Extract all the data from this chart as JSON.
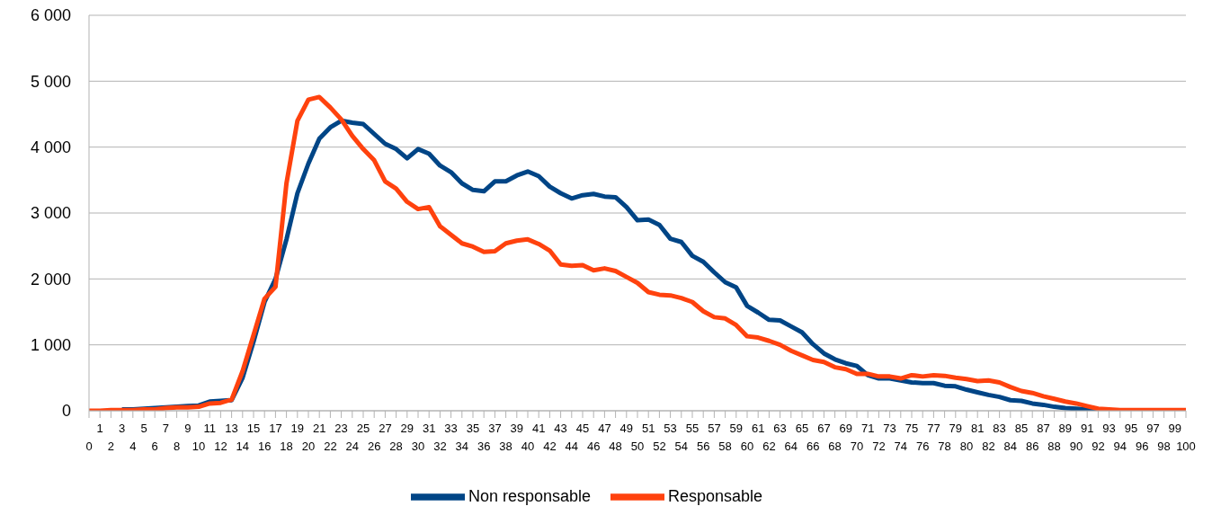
{
  "chart_data": {
    "type": "line",
    "categories": [
      "0",
      "1",
      "2",
      "3",
      "4",
      "5",
      "6",
      "7",
      "8",
      "9",
      "10",
      "11",
      "12",
      "13",
      "14",
      "15",
      "16",
      "17",
      "18",
      "19",
      "20",
      "21",
      "22",
      "23",
      "24",
      "25",
      "26",
      "27",
      "28",
      "29",
      "30",
      "31",
      "32",
      "33",
      "34",
      "35",
      "36",
      "37",
      "38",
      "39",
      "40",
      "41",
      "42",
      "43",
      "44",
      "45",
      "46",
      "47",
      "48",
      "49",
      "50",
      "51",
      "52",
      "53",
      "54",
      "55",
      "56",
      "57",
      "58",
      "59",
      "60",
      "61",
      "62",
      "63",
      "64",
      "65",
      "66",
      "67",
      "68",
      "69",
      "70",
      "71",
      "72",
      "73",
      "74",
      "75",
      "76",
      "77",
      "78",
      "79",
      "80",
      "81",
      "82",
      "83",
      "84",
      "85",
      "86",
      "87",
      "88",
      "89",
      "90",
      "91",
      "92",
      "93",
      "94",
      "95",
      "96",
      "97",
      "98",
      "99",
      "100"
    ],
    "series": [
      {
        "name": "Non responsable",
        "color": "#004586",
        "values": [
          null,
          null,
          null,
          20,
          20,
          30,
          40,
          50,
          60,
          70,
          80,
          140,
          150,
          160,
          500,
          1050,
          1650,
          2000,
          2600,
          3300,
          3750,
          4130,
          4300,
          4400,
          4370,
          4350,
          4200,
          4050,
          3970,
          3830,
          3970,
          3900,
          3720,
          3620,
          3450,
          3350,
          3330,
          3480,
          3480,
          3570,
          3630,
          3560,
          3400,
          3300,
          3220,
          3270,
          3290,
          3250,
          3240,
          3090,
          2890,
          2900,
          2820,
          2610,
          2560,
          2350,
          2260,
          2100,
          1950,
          1870,
          1590,
          1490,
          1380,
          1370,
          1280,
          1190,
          1010,
          870,
          780,
          720,
          680,
          540,
          490,
          490,
          460,
          430,
          420,
          420,
          380,
          370,
          320,
          280,
          240,
          210,
          160,
          150,
          110,
          90,
          60,
          40,
          30,
          20,
          10,
          0,
          null,
          null,
          null,
          null,
          null,
          null,
          null
        ]
      },
      {
        "name": "Responsable",
        "color": "#ff420e",
        "values": [
          0,
          0,
          10,
          10,
          10,
          20,
          20,
          40,
          50,
          50,
          60,
          110,
          120,
          170,
          600,
          1150,
          1700,
          1880,
          3450,
          4400,
          4720,
          4760,
          4600,
          4420,
          4170,
          3970,
          3800,
          3480,
          3370,
          3170,
          3060,
          3090,
          2800,
          2670,
          2540,
          2490,
          2410,
          2420,
          2540,
          2580,
          2600,
          2530,
          2430,
          2220,
          2200,
          2210,
          2130,
          2160,
          2120,
          2030,
          1940,
          1800,
          1760,
          1750,
          1710,
          1650,
          1510,
          1420,
          1400,
          1300,
          1130,
          1110,
          1060,
          1000,
          910,
          840,
          770,
          740,
          660,
          630,
          560,
          560,
          520,
          520,
          490,
          540,
          520,
          540,
          530,
          500,
          480,
          450,
          460,
          430,
          360,
          300,
          270,
          220,
          180,
          140,
          110,
          70,
          30,
          20,
          10,
          10,
          10,
          10,
          10,
          10,
          10
        ]
      }
    ],
    "ylim": [
      0,
      6000
    ],
    "yticks": [
      0,
      {
        "value": 1000,
        "label": "1 000"
      },
      {
        "value": 2000,
        "label": "2 000"
      },
      {
        "value": 3000,
        "label": "3 000"
      },
      {
        "value": 4000,
        "label": "4 000"
      },
      {
        "value": 5000,
        "label": "5 000"
      },
      {
        "value": 6000,
        "label": "6 000"
      }
    ],
    "grid": "y",
    "legend": "bottom",
    "marker": "none",
    "line_style": "solid"
  }
}
